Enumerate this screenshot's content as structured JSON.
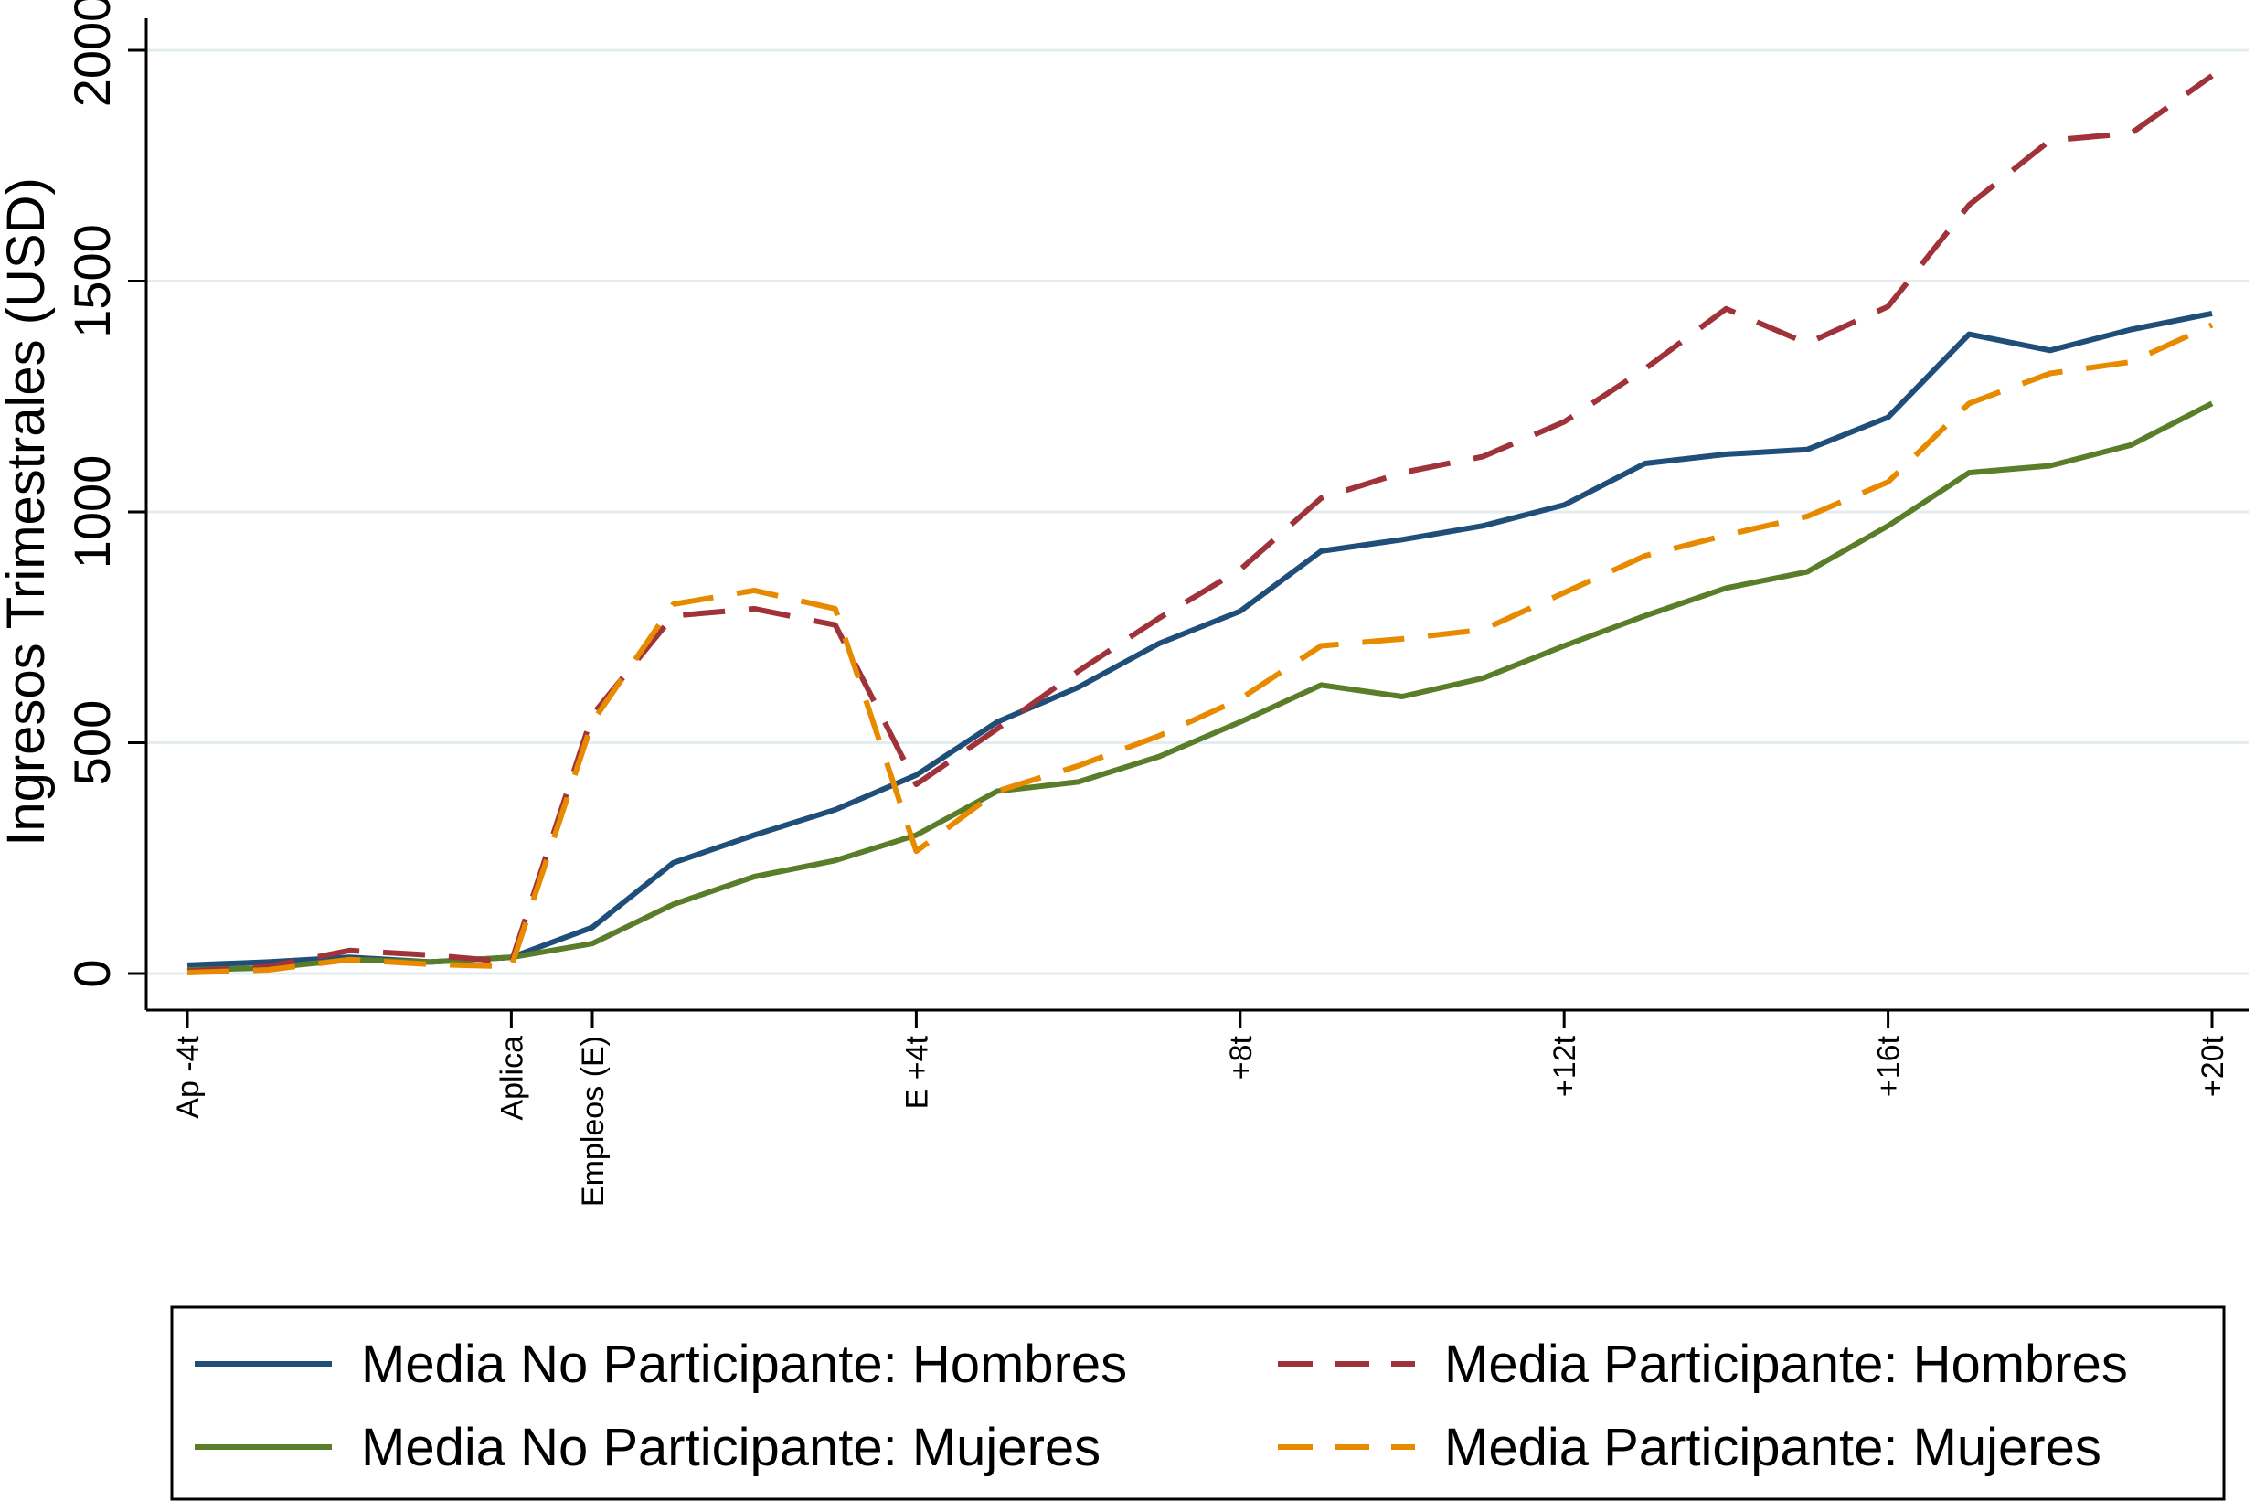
{
  "chart_data": {
    "type": "line",
    "ylabel": "Ingresos Trimestrales (USD)",
    "xlabel": "",
    "ylim": [
      0,
      2000
    ],
    "yticks": [
      0,
      500,
      1000,
      1500,
      2000
    ],
    "xticks": [
      {
        "x": -4,
        "label": "Ap -4t"
      },
      {
        "x": 0,
        "label": "Aplica"
      },
      {
        "x": 1,
        "label": "Empleos (E)"
      },
      {
        "x": 5,
        "label": "E +4t"
      },
      {
        "x": 9,
        "label": "+8t"
      },
      {
        "x": 13,
        "label": "+12t"
      },
      {
        "x": 17,
        "label": "+16t"
      },
      {
        "x": 21,
        "label": "+20t"
      }
    ],
    "x": [
      -4,
      -3,
      -2,
      -1,
      0,
      1,
      2,
      3,
      4,
      5,
      6,
      7,
      8,
      9,
      10,
      11,
      12,
      13,
      14,
      15,
      16,
      17,
      18,
      19,
      20,
      21
    ],
    "grid": true,
    "legend_position": "bottom",
    "series": [
      {
        "name": "Media No Participante: Hombres",
        "color": "#1f4e79",
        "dash": "solid",
        "values": [
          18,
          25,
          35,
          25,
          35,
          100,
          240,
          300,
          355,
          430,
          545,
          620,
          715,
          785,
          915,
          940,
          970,
          1015,
          1105,
          1125,
          1135,
          1205,
          1385,
          1350,
          1395,
          1430
        ]
      },
      {
        "name": "Media No Participante: Mujeres",
        "color": "#5a7d2a",
        "dash": "solid",
        "values": [
          8,
          12,
          30,
          25,
          35,
          65,
          150,
          210,
          245,
          300,
          395,
          415,
          470,
          545,
          625,
          600,
          640,
          710,
          775,
          835,
          870,
          970,
          1085,
          1100,
          1145,
          1235
        ]
      },
      {
        "name": "Media Participante: Hombres",
        "color": "#a0333a",
        "dash": "dashed",
        "values": [
          5,
          15,
          50,
          40,
          25,
          560,
          775,
          790,
          755,
          410,
          530,
          655,
          770,
          875,
          1030,
          1085,
          1120,
          1195,
          1310,
          1440,
          1365,
          1445,
          1665,
          1805,
          1820,
          1945
        ]
      },
      {
        "name": "Media Participante: Mujeres",
        "color": "#e88a00",
        "dash": "dashed",
        "values": [
          2,
          8,
          30,
          20,
          15,
          545,
          800,
          830,
          790,
          265,
          395,
          450,
          515,
          595,
          710,
          725,
          745,
          825,
          905,
          950,
          990,
          1065,
          1235,
          1300,
          1325,
          1405
        ]
      }
    ],
    "legend": [
      {
        "label": "Media No Participante: Hombres",
        "series": 0
      },
      {
        "label": "Media Participante: Hombres",
        "series": 2
      },
      {
        "label": "Media No Participante: Mujeres",
        "series": 1
      },
      {
        "label": "Media Participante: Mujeres",
        "series": 3
      }
    ]
  }
}
